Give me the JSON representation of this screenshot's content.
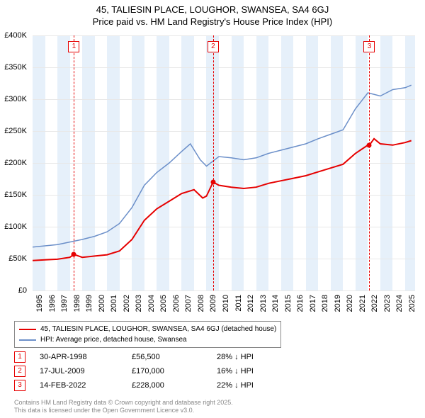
{
  "title_line1": "45, TALIESIN PLACE, LOUGHOR, SWANSEA, SA4 6GJ",
  "title_line2": "Price paid vs. HM Land Registry's House Price Index (HPI)",
  "chart": {
    "type": "line",
    "background_color": "#ffffff",
    "grid_color": "#e8e8e8",
    "x_min": 1995,
    "x_max": 2025.8,
    "x_ticks": [
      1995,
      1996,
      1997,
      1998,
      1999,
      2000,
      2001,
      2002,
      2003,
      2004,
      2005,
      2006,
      2007,
      2008,
      2009,
      2010,
      2011,
      2012,
      2013,
      2014,
      2015,
      2016,
      2017,
      2018,
      2019,
      2020,
      2021,
      2022,
      2023,
      2024,
      2025
    ],
    "y_min": 0,
    "y_max": 400000,
    "y_ticks": [
      {
        "v": 0,
        "label": "£0"
      },
      {
        "v": 50000,
        "label": "£50K"
      },
      {
        "v": 100000,
        "label": "£100K"
      },
      {
        "v": 150000,
        "label": "£150K"
      },
      {
        "v": 200000,
        "label": "£200K"
      },
      {
        "v": 250000,
        "label": "£250K"
      },
      {
        "v": 300000,
        "label": "£300K"
      },
      {
        "v": 350000,
        "label": "£350K"
      },
      {
        "v": 400000,
        "label": "£400K"
      }
    ],
    "alt_bands": true,
    "band_color": "#e6f0fa",
    "series": [
      {
        "name": "property",
        "color": "#e60000",
        "width": 2,
        "label": "45, TALIESIN PLACE, LOUGHOR, SWANSEA, SA4 6GJ (detached house)",
        "points": [
          [
            1995,
            47000
          ],
          [
            1996,
            48000
          ],
          [
            1997,
            49000
          ],
          [
            1998,
            52000
          ],
          [
            1998.33,
            56500
          ],
          [
            1999,
            52000
          ],
          [
            2000,
            54000
          ],
          [
            2001,
            56000
          ],
          [
            2002,
            62000
          ],
          [
            2003,
            80000
          ],
          [
            2004,
            110000
          ],
          [
            2005,
            128000
          ],
          [
            2006,
            140000
          ],
          [
            2007,
            152000
          ],
          [
            2008,
            158000
          ],
          [
            2008.7,
            145000
          ],
          [
            2009,
            148000
          ],
          [
            2009.54,
            170000
          ],
          [
            2010,
            165000
          ],
          [
            2011,
            162000
          ],
          [
            2012,
            160000
          ],
          [
            2013,
            162000
          ],
          [
            2014,
            168000
          ],
          [
            2015,
            172000
          ],
          [
            2016,
            176000
          ],
          [
            2017,
            180000
          ],
          [
            2018,
            186000
          ],
          [
            2019,
            192000
          ],
          [
            2020,
            198000
          ],
          [
            2021,
            215000
          ],
          [
            2022,
            228000
          ],
          [
            2022.12,
            228000
          ],
          [
            2022.5,
            238000
          ],
          [
            2023,
            230000
          ],
          [
            2024,
            228000
          ],
          [
            2025,
            232000
          ],
          [
            2025.5,
            235000
          ]
        ]
      },
      {
        "name": "hpi",
        "color": "#6b8fc9",
        "width": 1.5,
        "label": "HPI: Average price, detached house, Swansea",
        "points": [
          [
            1995,
            68000
          ],
          [
            1996,
            70000
          ],
          [
            1997,
            72000
          ],
          [
            1998,
            76000
          ],
          [
            1999,
            80000
          ],
          [
            2000,
            85000
          ],
          [
            2001,
            92000
          ],
          [
            2002,
            105000
          ],
          [
            2003,
            130000
          ],
          [
            2004,
            165000
          ],
          [
            2005,
            185000
          ],
          [
            2006,
            200000
          ],
          [
            2007,
            218000
          ],
          [
            2007.7,
            230000
          ],
          [
            2008.5,
            205000
          ],
          [
            2009,
            195000
          ],
          [
            2010,
            210000
          ],
          [
            2011,
            208000
          ],
          [
            2012,
            205000
          ],
          [
            2013,
            208000
          ],
          [
            2014,
            215000
          ],
          [
            2015,
            220000
          ],
          [
            2016,
            225000
          ],
          [
            2017,
            230000
          ],
          [
            2018,
            238000
          ],
          [
            2019,
            245000
          ],
          [
            2020,
            252000
          ],
          [
            2021,
            285000
          ],
          [
            2022,
            310000
          ],
          [
            2023,
            305000
          ],
          [
            2024,
            315000
          ],
          [
            2025,
            318000
          ],
          [
            2025.5,
            322000
          ]
        ]
      }
    ],
    "markers": [
      {
        "n": "1",
        "x": 1998.33,
        "color": "#e60000",
        "dot_y": 56500
      },
      {
        "n": "2",
        "x": 2009.54,
        "color": "#e60000",
        "dot_y": 170000
      },
      {
        "n": "3",
        "x": 2022.12,
        "color": "#e60000",
        "dot_y": 228000
      }
    ]
  },
  "legend": {
    "rows": [
      {
        "color": "#e60000",
        "text": "45, TALIESIN PLACE, LOUGHOR, SWANSEA, SA4 6GJ (detached house)"
      },
      {
        "color": "#6b8fc9",
        "text": "HPI: Average price, detached house, Swansea"
      }
    ]
  },
  "sales": [
    {
      "n": "1",
      "color": "#e60000",
      "date": "30-APR-1998",
      "price": "£56,500",
      "diff": "28% ↓ HPI"
    },
    {
      "n": "2",
      "color": "#e60000",
      "date": "17-JUL-2009",
      "price": "£170,000",
      "diff": "16% ↓ HPI"
    },
    {
      "n": "3",
      "color": "#e60000",
      "date": "14-FEB-2022",
      "price": "£228,000",
      "diff": "22% ↓ HPI"
    }
  ],
  "attribution_line1": "Contains HM Land Registry data © Crown copyright and database right 2025.",
  "attribution_line2": "This data is licensed under the Open Government Licence v3.0."
}
